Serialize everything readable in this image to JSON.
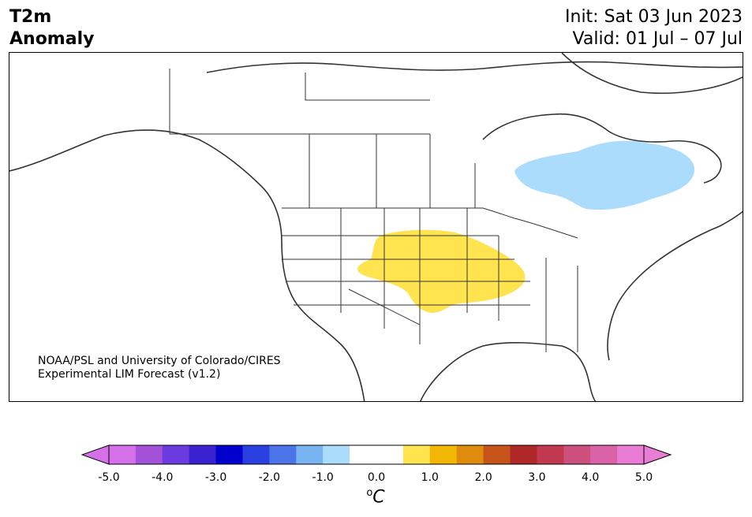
{
  "header": {
    "title_line1": "T2m",
    "title_line2": "Anomaly",
    "init_text": "Init: Sat 03 Jun 2023",
    "valid_text": "Valid: 01 Jul – 07 Jul"
  },
  "map": {
    "credit_line1": "NOAA/PSL and University of Colorado/CIRES",
    "credit_line2": "Experimental LIM Forecast (v1.2)",
    "anomaly_regions": [
      {
        "name": "warm-anomaly",
        "region": "Central Plains",
        "level_c": 1.0,
        "color": "#ffe34f"
      },
      {
        "name": "cool-anomaly",
        "region": "Hudson Bay / Ontario-Quebec",
        "level_c": -1.0,
        "color": "#abdcfb"
      }
    ]
  },
  "colorbar": {
    "unit_label": "C",
    "unit_sup": "o",
    "tick_labels": [
      "-5.0",
      "-4.0",
      "-3.0",
      "-2.0",
      "-1.0",
      "0.0",
      "1.0",
      "2.0",
      "3.0",
      "4.0",
      "5.0"
    ],
    "colors": [
      "#d471e8",
      "#a251d8",
      "#6b3be0",
      "#3a22d0",
      "#0000cd",
      "#2a3fe0",
      "#4a74e8",
      "#78b4f2",
      "#abdcfb",
      "#ffffff",
      "#ffffff",
      "#ffe34f",
      "#f2b705",
      "#df8b0d",
      "#c6541a",
      "#b02727",
      "#c2384f",
      "#cd4f7c",
      "#da63a8",
      "#e97cd4"
    ]
  }
}
